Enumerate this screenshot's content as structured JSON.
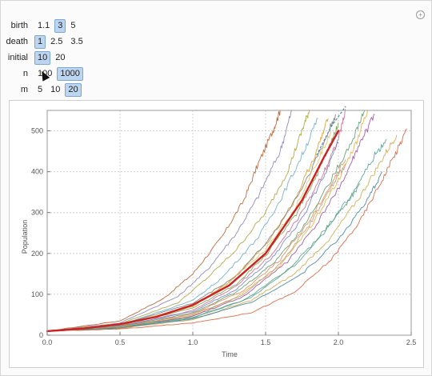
{
  "controls": {
    "birth": {
      "label": "birth",
      "options": [
        "1.1",
        "3",
        "5"
      ],
      "selected": "3"
    },
    "death": {
      "label": "death",
      "options": [
        "1",
        "2.5",
        "3.5"
      ],
      "selected": "1"
    },
    "initial": {
      "label": "initial",
      "options": [
        "10",
        "20"
      ],
      "selected": "10"
    },
    "n": {
      "label": "n",
      "options": [
        "100",
        "1000"
      ],
      "selected": "1000"
    },
    "m": {
      "label": "m",
      "options": [
        "5",
        "10",
        "20"
      ],
      "selected": "20"
    }
  },
  "chart_data": {
    "type": "line",
    "xlabel": "Time",
    "ylabel": "Population",
    "xlim": [
      0,
      2.5
    ],
    "ylim": [
      0,
      550
    ],
    "xticks": [
      "0.0",
      "0.5",
      "1.0",
      "1.5",
      "2.0",
      "2.5"
    ],
    "yticks": [
      "0",
      "100",
      "200",
      "300",
      "400",
      "500"
    ],
    "grid": true,
    "mean_series": {
      "color": "#cc2222",
      "points": [
        [
          0,
          10
        ],
        [
          0.25,
          16.5
        ],
        [
          0.5,
          27
        ],
        [
          0.75,
          45
        ],
        [
          1.0,
          74
        ],
        [
          1.25,
          122
        ],
        [
          1.5,
          200
        ],
        [
          1.75,
          330
        ],
        [
          1.9,
          435
        ],
        [
          2.0,
          500
        ]
      ]
    },
    "projection_series": {
      "color": "#4a8aa6",
      "points": [
        [
          1.85,
          440
        ],
        [
          1.95,
          510
        ],
        [
          2.05,
          570
        ]
      ]
    },
    "series": [
      {
        "color": "#b35c2e",
        "points": [
          [
            0,
            10
          ],
          [
            0.5,
            35
          ],
          [
            0.8,
            90
          ],
          [
            1.0,
            150
          ],
          [
            1.2,
            240
          ],
          [
            1.35,
            330
          ],
          [
            1.45,
            420
          ],
          [
            1.55,
            500
          ],
          [
            1.6,
            550
          ]
        ]
      },
      {
        "color": "#8a7bb5",
        "points": [
          [
            0,
            10
          ],
          [
            0.5,
            30
          ],
          [
            0.9,
            95
          ],
          [
            1.1,
            160
          ],
          [
            1.3,
            250
          ],
          [
            1.45,
            340
          ],
          [
            1.6,
            450
          ],
          [
            1.68,
            550
          ]
        ]
      },
      {
        "color": "#a3a33a",
        "points": [
          [
            0,
            10
          ],
          [
            0.5,
            28
          ],
          [
            0.9,
            80
          ],
          [
            1.1,
            140
          ],
          [
            1.3,
            210
          ],
          [
            1.5,
            300
          ],
          [
            1.65,
            400
          ],
          [
            1.75,
            500
          ],
          [
            1.8,
            550
          ]
        ]
      },
      {
        "color": "#6aa9c9",
        "points": [
          [
            0,
            10
          ],
          [
            0.5,
            25
          ],
          [
            1.0,
            85
          ],
          [
            1.2,
            140
          ],
          [
            1.45,
            240
          ],
          [
            1.6,
            330
          ],
          [
            1.75,
            440
          ],
          [
            1.86,
            530
          ]
        ]
      },
      {
        "color": "#d89a2a",
        "points": [
          [
            0,
            10
          ],
          [
            0.5,
            24
          ],
          [
            1.0,
            70
          ],
          [
            1.25,
            130
          ],
          [
            1.5,
            220
          ],
          [
            1.7,
            330
          ],
          [
            1.85,
            450
          ],
          [
            1.93,
            530
          ]
        ]
      },
      {
        "color": "#7a7a7a",
        "points": [
          [
            0,
            10
          ],
          [
            0.5,
            26
          ],
          [
            1.0,
            78
          ],
          [
            1.3,
            145
          ],
          [
            1.55,
            245
          ],
          [
            1.75,
            360
          ],
          [
            1.9,
            470
          ],
          [
            1.98,
            540
          ]
        ]
      },
      {
        "color": "#c96a8a",
        "points": [
          [
            0,
            10
          ],
          [
            0.5,
            22
          ],
          [
            1.0,
            60
          ],
          [
            1.3,
            120
          ],
          [
            1.55,
            200
          ],
          [
            1.75,
            300
          ],
          [
            1.9,
            400
          ],
          [
            2.0,
            480
          ],
          [
            2.05,
            550
          ]
        ]
      },
      {
        "color": "#5b9b6b",
        "points": [
          [
            0,
            10
          ],
          [
            0.5,
            21
          ],
          [
            1.0,
            55
          ],
          [
            1.3,
            105
          ],
          [
            1.55,
            175
          ],
          [
            1.75,
            260
          ],
          [
            1.95,
            380
          ],
          [
            2.1,
            480
          ],
          [
            2.18,
            550
          ]
        ]
      },
      {
        "color": "#e0b040",
        "points": [
          [
            0,
            10
          ],
          [
            0.5,
            20
          ],
          [
            1.0,
            48
          ],
          [
            1.3,
            92
          ],
          [
            1.6,
            170
          ],
          [
            1.8,
            260
          ],
          [
            2.0,
            380
          ],
          [
            2.12,
            470
          ],
          [
            2.2,
            550
          ]
        ]
      },
      {
        "color": "#9a4fa0",
        "points": [
          [
            0,
            10
          ],
          [
            0.5,
            19
          ],
          [
            1.0,
            46
          ],
          [
            1.35,
            95
          ],
          [
            1.65,
            180
          ],
          [
            1.85,
            270
          ],
          [
            2.05,
            390
          ],
          [
            2.15,
            470
          ],
          [
            2.25,
            540
          ]
        ]
      },
      {
        "color": "#4f9e9a",
        "points": [
          [
            0,
            10
          ],
          [
            0.5,
            18
          ],
          [
            1.0,
            42
          ],
          [
            1.35,
            85
          ],
          [
            1.65,
            160
          ],
          [
            1.9,
            250
          ],
          [
            2.1,
            350
          ],
          [
            2.25,
            440
          ],
          [
            2.33,
            480
          ]
        ]
      },
      {
        "color": "#c9a94a",
        "points": [
          [
            0,
            10
          ],
          [
            0.5,
            17
          ],
          [
            1.0,
            38
          ],
          [
            1.4,
            85
          ],
          [
            1.7,
            150
          ],
          [
            1.95,
            240
          ],
          [
            2.15,
            340
          ],
          [
            2.3,
            430
          ],
          [
            2.4,
            490
          ]
        ]
      },
      {
        "color": "#d0603a",
        "points": [
          [
            0,
            10
          ],
          [
            0.5,
            15
          ],
          [
            1.0,
            30
          ],
          [
            1.4,
            55
          ],
          [
            1.7,
            105
          ],
          [
            1.95,
            185
          ],
          [
            2.15,
            280
          ],
          [
            2.3,
            380
          ],
          [
            2.4,
            450
          ],
          [
            2.47,
            505
          ]
        ]
      },
      {
        "color": "#7aa04a",
        "points": [
          [
            0,
            10
          ],
          [
            0.5,
            23
          ],
          [
            1.0,
            66
          ],
          [
            1.3,
            125
          ],
          [
            1.5,
            195
          ],
          [
            1.7,
            290
          ],
          [
            1.85,
            390
          ],
          [
            1.95,
            470
          ],
          [
            2.0,
            520
          ]
        ]
      },
      {
        "color": "#e08a5a",
        "points": [
          [
            0,
            10
          ],
          [
            0.5,
            20
          ],
          [
            1.0,
            52
          ],
          [
            1.35,
            110
          ],
          [
            1.6,
            185
          ],
          [
            1.8,
            280
          ],
          [
            1.95,
            370
          ],
          [
            2.05,
            430
          ]
        ]
      },
      {
        "color": "#6b7fc4",
        "points": [
          [
            0,
            10
          ],
          [
            0.5,
            22
          ],
          [
            1.0,
            58
          ],
          [
            1.3,
            112
          ],
          [
            1.55,
            190
          ],
          [
            1.75,
            285
          ],
          [
            1.9,
            390
          ],
          [
            2.0,
            470
          ]
        ]
      },
      {
        "color": "#3f7f9f",
        "points": [
          [
            0,
            10
          ],
          [
            0.5,
            18
          ],
          [
            1.0,
            40
          ],
          [
            1.4,
            80
          ],
          [
            1.75,
            150
          ],
          [
            2.0,
            235
          ],
          [
            2.2,
            330
          ],
          [
            2.3,
            400
          ]
        ]
      },
      {
        "color": "#b89a7a",
        "points": [
          [
            0,
            10
          ],
          [
            0.5,
            21
          ],
          [
            1.0,
            50
          ],
          [
            1.35,
            100
          ],
          [
            1.6,
            175
          ],
          [
            1.8,
            270
          ],
          [
            1.95,
            360
          ],
          [
            2.05,
            420
          ]
        ]
      },
      {
        "color": "#5fa07f",
        "points": [
          [
            0,
            10
          ],
          [
            0.5,
            19
          ],
          [
            1.0,
            44
          ],
          [
            1.4,
            92
          ],
          [
            1.7,
            170
          ],
          [
            1.9,
            255
          ],
          [
            2.05,
            320
          ],
          [
            2.15,
            370
          ]
        ]
      },
      {
        "color": "#e6c06a",
        "points": [
          [
            0,
            10
          ],
          [
            0.5,
            25
          ],
          [
            1.0,
            72
          ],
          [
            1.25,
            128
          ],
          [
            1.5,
            210
          ],
          [
            1.7,
            310
          ],
          [
            1.85,
            420
          ],
          [
            1.95,
            500
          ]
        ]
      }
    ]
  }
}
